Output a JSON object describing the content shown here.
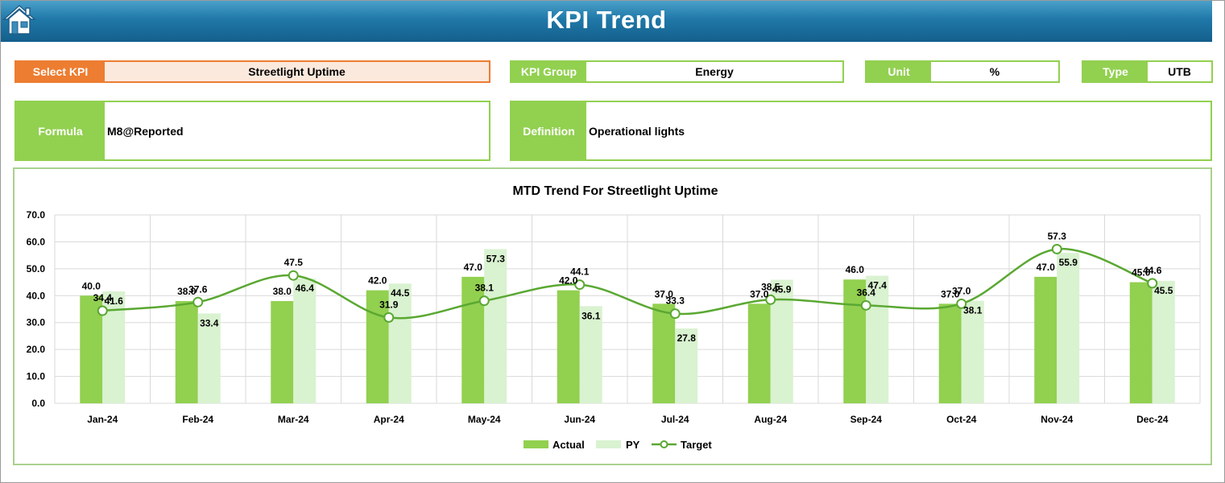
{
  "header": {
    "title": "KPI Trend",
    "home_icon": "home-icon"
  },
  "fields": {
    "select_kpi": {
      "label": "Select KPI",
      "value": "Streetlight Uptime"
    },
    "kpi_group": {
      "label": "KPI Group",
      "value": "Energy"
    },
    "unit": {
      "label": "Unit",
      "value": "%"
    },
    "type": {
      "label": "Type",
      "value": "UTB"
    },
    "formula": {
      "label": "Formula",
      "value": "M8@Reported"
    },
    "definition": {
      "label": "Definition",
      "value": "Operational lights"
    }
  },
  "colors": {
    "header": "#1f78a8",
    "accent_green": "#92d050",
    "accent_orange": "#ed7d31",
    "actual": "#92d050",
    "py": "#d9f2d0",
    "target": "#5aa832"
  },
  "chart_data": {
    "type": "bar",
    "title": "MTD Trend For Streetlight Uptime",
    "categories": [
      "Jan-24",
      "Feb-24",
      "Mar-24",
      "Apr-24",
      "May-24",
      "Jun-24",
      "Jul-24",
      "Aug-24",
      "Sep-24",
      "Oct-24",
      "Nov-24",
      "Dec-24"
    ],
    "series": [
      {
        "name": "Actual",
        "kind": "bar",
        "values": [
          40.0,
          38.0,
          38.0,
          42.0,
          47.0,
          42.0,
          37.0,
          37.0,
          46.0,
          37.0,
          47.0,
          45.0
        ]
      },
      {
        "name": "PY",
        "kind": "bar",
        "values": [
          41.6,
          33.4,
          46.4,
          44.5,
          57.3,
          36.1,
          27.8,
          45.9,
          47.4,
          38.1,
          55.9,
          45.5
        ]
      },
      {
        "name": "Target",
        "kind": "line",
        "values": [
          34.4,
          37.6,
          47.5,
          31.9,
          38.1,
          44.1,
          33.3,
          38.5,
          36.4,
          37.0,
          57.3,
          44.6
        ]
      }
    ],
    "y_ticks": [
      "0.0",
      "10.0",
      "20.0",
      "30.0",
      "40.0",
      "50.0",
      "60.0",
      "70.0"
    ],
    "ylim": [
      0,
      70
    ],
    "grid": true,
    "legend_position": "bottom"
  }
}
